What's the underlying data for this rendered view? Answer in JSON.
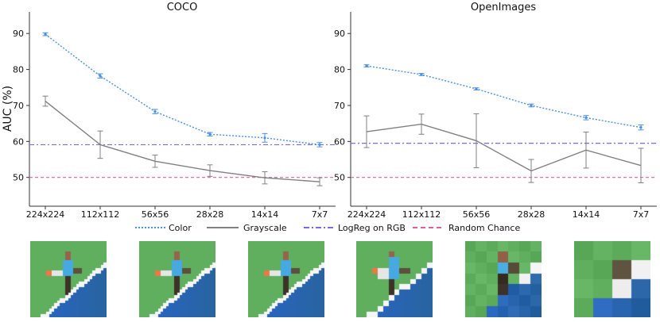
{
  "ylabel": "AUC (%)",
  "legend": {
    "color": "Color",
    "grayscale": "Grayscale",
    "logreg": "LogReg on RGB",
    "random": "Random Chance"
  },
  "colors": {
    "color_series": "#4a90e2",
    "grayscale_series": "#808080",
    "logreg_line": "#7b68ee",
    "random_line": "#e0609a"
  },
  "chart_data": [
    {
      "type": "line",
      "title": "COCO",
      "categories": [
        "224x224",
        "112x112",
        "56x56",
        "28x28",
        "14x14",
        "7x7"
      ],
      "ylim": [
        42,
        96
      ],
      "yticks": [
        50,
        60,
        70,
        80,
        90
      ],
      "series": [
        {
          "name": "Color",
          "values": [
            89.8,
            78.2,
            68.3,
            62.0,
            61.0,
            59.1
          ],
          "errors": [
            0.4,
            0.6,
            0.6,
            0.5,
            1.2,
            0.6
          ]
        },
        {
          "name": "Grayscale",
          "values": [
            71.2,
            59.1,
            54.5,
            51.9,
            49.9,
            48.8
          ],
          "errors": [
            1.4,
            3.8,
            1.7,
            1.6,
            1.7,
            1.1
          ]
        }
      ],
      "hlines": [
        {
          "name": "LogReg on RGB",
          "value": 59.1
        },
        {
          "name": "Random Chance",
          "value": 50.0
        }
      ]
    },
    {
      "type": "line",
      "title": "OpenImages",
      "categories": [
        "224x224",
        "112x112",
        "56x56",
        "28x28",
        "14x14",
        "7x7"
      ],
      "ylim": [
        42,
        96
      ],
      "yticks": [
        50,
        60,
        70,
        80,
        90
      ],
      "series": [
        {
          "name": "Color",
          "values": [
            81.0,
            78.6,
            74.6,
            70.0,
            66.6,
            63.9
          ],
          "errors": [
            0.3,
            0.3,
            0.3,
            0.4,
            0.6,
            0.7
          ]
        },
        {
          "name": "Grayscale",
          "values": [
            62.7,
            64.8,
            60.2,
            51.8,
            57.6,
            53.3
          ],
          "errors": [
            4.4,
            2.8,
            7.5,
            3.2,
            5.0,
            4.8
          ]
        }
      ],
      "hlines": [
        {
          "name": "LogReg on RGB",
          "value": 59.5
        },
        {
          "name": "Random Chance",
          "value": 50.0
        }
      ]
    }
  ],
  "image_strip": {
    "resolutions": [
      224,
      112,
      56,
      28,
      14,
      7
    ],
    "grid_sizes": [
      28,
      28,
      28,
      14,
      7,
      4
    ]
  }
}
